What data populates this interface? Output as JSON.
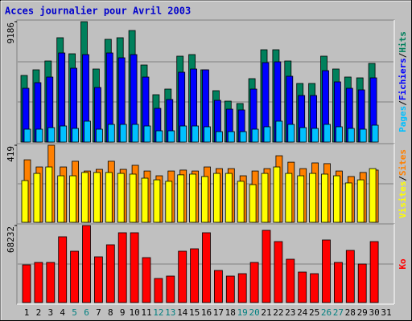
{
  "chart_data": [
    {
      "type": "bar",
      "title": "Acces journalier pour Avril 2003",
      "ylim": [
        0,
        9186
      ],
      "yticks": [
        9186
      ],
      "legend_separator": "/",
      "series": [
        {
          "name": "Hits",
          "color": "#00805c",
          "values": [
            5083,
            5512,
            6185,
            7961,
            6736,
            9186,
            5573,
            7839,
            7961,
            8512,
            5879,
            3613,
            4042,
            6553,
            6675,
            5512,
            3919,
            3123,
            2940,
            4838,
            7043,
            7043,
            6185,
            4471,
            4471,
            6553,
            5573,
            4961,
            4899,
            6001,
            null
          ]
        },
        {
          "name": "Fichiers",
          "color": "#0000ff",
          "values": [
            4103,
            4532,
            4960,
            6798,
            5634,
            6675,
            4164,
            6798,
            6430,
            6675,
            4960,
            2572,
            3246,
            5328,
            5573,
            5512,
            3184,
            2511,
            2450,
            4042,
            6063,
            6124,
            5022,
            3552,
            3552,
            5450,
            4593,
            4103,
            3981,
            4899,
            null
          ]
        },
        {
          "name": "Pages",
          "color": "#00c0ff",
          "values": [
            980,
            980,
            1102,
            1225,
            1041,
            1592,
            980,
            1347,
            1347,
            1347,
            1225,
            857,
            857,
            1225,
            1225,
            1164,
            796,
            796,
            796,
            980,
            1164,
            1592,
            1347,
            1102,
            1041,
            1347,
            1164,
            1041,
            980,
            1286,
            null
          ]
        }
      ]
    },
    {
      "type": "bar",
      "ylim": [
        0,
        419
      ],
      "yticks": [
        419
      ],
      "legend_separator": "/",
      "series": [
        {
          "name": "Sites",
          "color": "#ff8000",
          "values": [
            340,
            301,
            419,
            301,
            332,
            279,
            288,
            332,
            288,
            310,
            279,
            253,
            279,
            284,
            279,
            301,
            292,
            292,
            253,
            279,
            292,
            362,
            327,
            292,
            323,
            319,
            279,
            249,
            271,
            284,
            null
          ]
        },
        {
          "name": "Visites",
          "color": "#ffff00",
          "values": [
            227,
            266,
            301,
            253,
            253,
            271,
            271,
            271,
            266,
            262,
            240,
            231,
            223,
            258,
            262,
            249,
            266,
            266,
            223,
            205,
            266,
            301,
            266,
            253,
            266,
            262,
            253,
            214,
            231,
            292,
            null
          ]
        }
      ]
    },
    {
      "type": "bar",
      "ylim": [
        0,
        68232
      ],
      "yticks": [
        68232
      ],
      "categories": [
        "1",
        "2",
        "3",
        "4",
        "5",
        "6",
        "7",
        "8",
        "9",
        "10",
        "11",
        "12",
        "13",
        "14",
        "15",
        "16",
        "17",
        "18",
        "19",
        "20",
        "21",
        "22",
        "23",
        "24",
        "25",
        "26",
        "27",
        "28",
        "29",
        "30",
        "31"
      ],
      "weekend_color": "#008080",
      "weekend_indices": [
        4,
        5,
        11,
        12,
        18,
        19,
        25,
        26
      ],
      "series": [
        {
          "name": "Ko",
          "color": "#ff0000",
          "values": [
            33405,
            35537,
            35537,
            58281,
            45488,
            68232,
            40513,
            51174,
            61835,
            61835,
            39802,
            21322,
            23455,
            45488,
            47620,
            61835,
            28430,
            23455,
            25587,
            35537,
            63968,
            54017,
            38381,
            27008,
            25587,
            55439,
            35537,
            46199,
            34116,
            54017,
            null
          ]
        }
      ]
    }
  ]
}
